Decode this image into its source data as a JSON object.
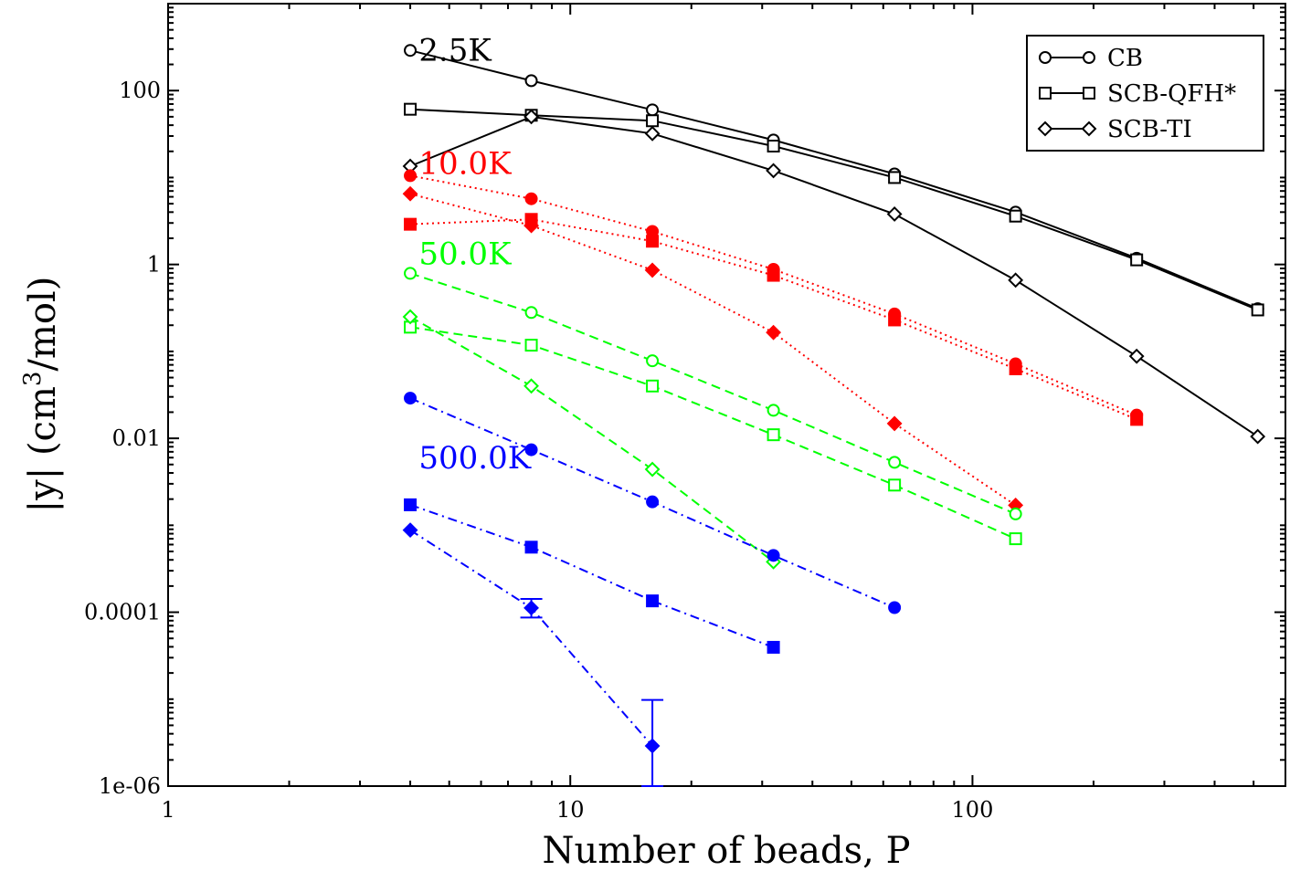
{
  "chart_data": {
    "type": "scatter",
    "xlabel": "Number of beads, P",
    "ylabel": "|y| (cm",
    "ylabel_sup": "3",
    "ylabel_end": "/mol)",
    "xscale": "log",
    "yscale": "log",
    "xlim": [
      1,
      600
    ],
    "ylim": [
      1e-06,
      1000
    ],
    "x_ticks": [
      {
        "value": 1,
        "label": "1"
      },
      {
        "value": 10,
        "label": "10"
      },
      {
        "value": 100,
        "label": "100"
      }
    ],
    "y_ticks": [
      {
        "value": 1e-06,
        "label": "1e-06"
      },
      {
        "value": 0.0001,
        "label": "0.0001"
      },
      {
        "value": 0.01,
        "label": "0.01"
      },
      {
        "value": 1,
        "label": "1"
      },
      {
        "value": 100,
        "label": "100"
      }
    ],
    "legend": {
      "position": "top-right",
      "entries": [
        {
          "label": "CB",
          "marker": "circle"
        },
        {
          "label": "SCB-QFH*",
          "marker": "square"
        },
        {
          "label": "SCB-TI",
          "marker": "diamond"
        }
      ]
    },
    "groups": [
      {
        "label": "2.5K",
        "color": "#000000",
        "line_style": "solid",
        "filled": false,
        "label_x": 4.2,
        "label_y": 220,
        "series": [
          {
            "marker": "circle",
            "x": [
              4,
              8,
              16,
              32,
              64,
              128,
              256,
              512
            ],
            "y": [
              290,
              130,
              60,
              27,
              11,
              4.0,
              1.18,
              0.31
            ]
          },
          {
            "marker": "square",
            "x": [
              4,
              8,
              16,
              32,
              64,
              128,
              256,
              512
            ],
            "y": [
              61,
              52,
              45,
              23,
              10,
              3.6,
              1.13,
              0.3
            ]
          },
          {
            "marker": "diamond",
            "x": [
              4,
              8,
              16,
              32,
              64,
              128,
              256,
              512
            ],
            "y": [
              13.5,
              50,
              32,
              12,
              3.8,
              0.66,
              0.088,
              0.0105
            ]
          }
        ]
      },
      {
        "label": "10.0K",
        "color": "#ff0000",
        "line_style": "dotted",
        "filled": true,
        "label_x": 4.2,
        "label_y": 11,
        "series": [
          {
            "marker": "circle",
            "x": [
              4,
              8,
              16,
              32,
              64,
              128,
              256
            ],
            "y": [
              10.5,
              5.7,
              2.4,
              0.88,
              0.27,
              0.072,
              0.0185
            ]
          },
          {
            "marker": "square",
            "x": [
              4,
              8,
              16,
              32,
              64,
              128,
              256
            ],
            "y": [
              2.9,
              3.3,
              1.85,
              0.75,
              0.23,
              0.063,
              0.0165
            ]
          },
          {
            "marker": "diamond",
            "x": [
              4,
              8,
              16,
              32,
              64,
              128
            ],
            "y": [
              6.5,
              2.8,
              0.86,
              0.165,
              0.0148,
              0.0017
            ]
          }
        ]
      },
      {
        "label": "50.0K",
        "color": "#00ff00",
        "line_style": "dashed",
        "filled": false,
        "label_x": 4.2,
        "label_y": 1.0,
        "series": [
          {
            "marker": "circle",
            "x": [
              4,
              8,
              16,
              32,
              64,
              128
            ],
            "y": [
              0.79,
              0.28,
              0.078,
              0.021,
              0.0053,
              0.00135
            ]
          },
          {
            "marker": "square",
            "x": [
              4,
              8,
              16,
              32,
              64,
              128
            ],
            "y": [
              0.19,
              0.118,
              0.04,
              0.011,
              0.0029,
              0.0007
            ]
          },
          {
            "marker": "diamond",
            "x": [
              4,
              8,
              16,
              32
            ],
            "y": [
              0.25,
              0.04,
              0.0044,
              0.00038
            ]
          }
        ]
      },
      {
        "label": "500.0K",
        "color": "#0000ff",
        "line_style": "dashdot",
        "filled": true,
        "label_x": 4.2,
        "label_y": 0.0045,
        "series": [
          {
            "marker": "circle",
            "x": [
              4,
              8,
              16,
              32,
              64
            ],
            "y": [
              0.029,
              0.0074,
              0.00186,
              0.00045,
              0.000113
            ]
          },
          {
            "marker": "square",
            "x": [
              4,
              8,
              16,
              32
            ],
            "y": [
              0.00172,
              0.00056,
              0.000135,
              3.95e-05
            ]
          },
          {
            "marker": "diamond",
            "x": [
              4,
              8,
              16
            ],
            "y": [
              0.00088,
              0.000112,
              2.9e-06
            ],
            "err_lo": [
              0,
              2.5e-05,
              1.9e-06
            ],
            "err_hi": [
              0,
              3e-05,
              6.9e-06
            ]
          }
        ]
      }
    ]
  }
}
